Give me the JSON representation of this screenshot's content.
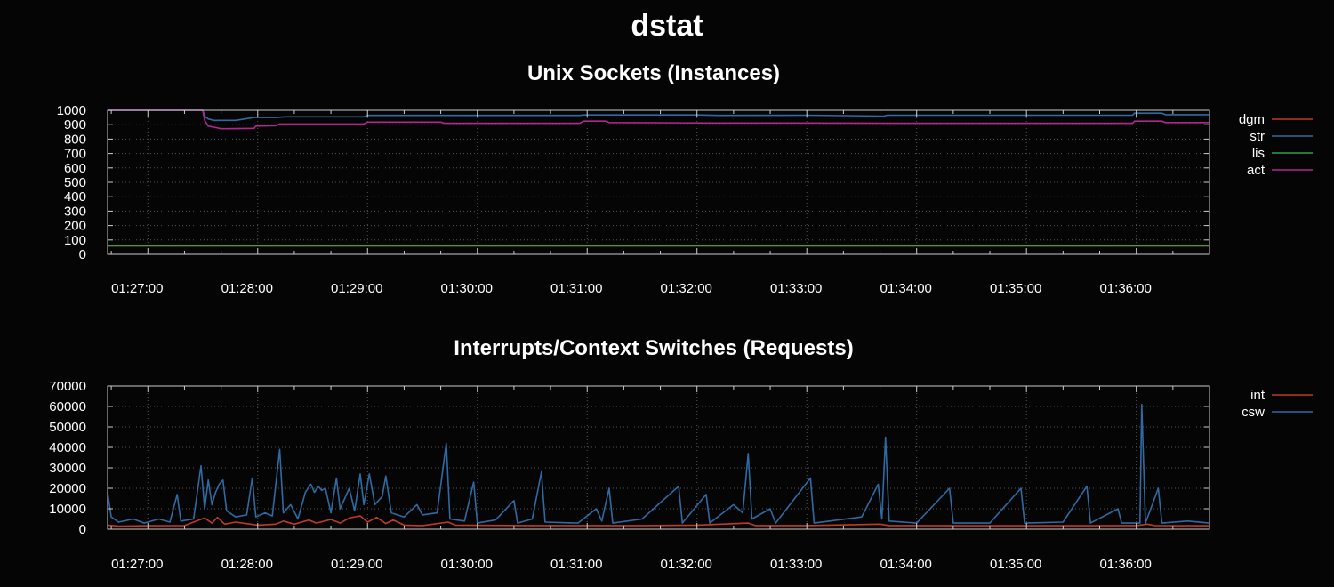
{
  "page": {
    "title": "dstat",
    "background": "#050505"
  },
  "chart_data": [
    {
      "type": "line",
      "title": "Unix Sockets (Instances)",
      "xlabel": "",
      "ylabel": "",
      "x_range": [
        "01:26:38",
        "01:36:40"
      ],
      "ylim": [
        0,
        1000
      ],
      "yticks": [
        "0",
        "100",
        "200",
        "300",
        "400",
        "500",
        "600",
        "700",
        "800",
        "900",
        "1000"
      ],
      "xticks": [
        "01:27:00",
        "01:28:00",
        "01:29:00",
        "01:30:00",
        "01:31:00",
        "01:32:00",
        "01:33:00",
        "01:34:00",
        "01:35:00",
        "01:36:00"
      ],
      "grid": true,
      "legend_position": "right",
      "series": [
        {
          "name": "dgm",
          "color": "#c0392b",
          "points": [
            [
              "01:26:38",
              58
            ],
            [
              "01:36:40",
              58
            ]
          ]
        },
        {
          "name": "str",
          "color": "#2e6aa3",
          "points": [
            [
              "01:26:38",
              1000
            ],
            [
              "01:27:30",
              1000
            ],
            [
              "01:27:31",
              960
            ],
            [
              "01:27:33",
              940
            ],
            [
              "01:27:36",
              930
            ],
            [
              "01:27:48",
              930
            ],
            [
              "01:27:58",
              950
            ],
            [
              "01:28:10",
              950
            ],
            [
              "01:28:15",
              955
            ],
            [
              "01:28:58",
              955
            ],
            [
              "01:29:00",
              965
            ],
            [
              "01:30:56",
              965
            ],
            [
              "01:30:58",
              968
            ],
            [
              "01:32:00",
              968
            ],
            [
              "01:32:12",
              965
            ],
            [
              "01:33:00",
              966
            ],
            [
              "01:33:42",
              960
            ],
            [
              "01:33:44",
              966
            ],
            [
              "01:35:58",
              966
            ],
            [
              "01:35:59",
              980
            ],
            [
              "01:36:14",
              980
            ],
            [
              "01:36:16",
              970
            ],
            [
              "01:36:40",
              970
            ]
          ]
        },
        {
          "name": "lis",
          "color": "#2e9e4f",
          "points": [
            [
              "01:26:38",
              60
            ],
            [
              "01:36:40",
              60
            ]
          ]
        },
        {
          "name": "act",
          "color": "#b0288e",
          "points": [
            [
              "01:26:38",
              1000
            ],
            [
              "01:27:30",
              1000
            ],
            [
              "01:27:31",
              930
            ],
            [
              "01:27:33",
              890
            ],
            [
              "01:27:37",
              880
            ],
            [
              "01:27:40",
              872
            ],
            [
              "01:27:58",
              875
            ],
            [
              "01:27:59",
              890
            ],
            [
              "01:28:10",
              893
            ],
            [
              "01:28:12",
              905
            ],
            [
              "01:28:58",
              905
            ],
            [
              "01:29:00",
              918
            ],
            [
              "01:29:40",
              918
            ],
            [
              "01:29:42",
              910
            ],
            [
              "01:30:56",
              910
            ],
            [
              "01:30:58",
              925
            ],
            [
              "01:31:10",
              925
            ],
            [
              "01:31:12",
              915
            ],
            [
              "01:32:10",
              912
            ],
            [
              "01:33:00",
              912
            ],
            [
              "01:34:00",
              910
            ],
            [
              "01:35:00",
              910
            ],
            [
              "01:35:58",
              910
            ],
            [
              "01:35:59",
              925
            ],
            [
              "01:36:14",
              925
            ],
            [
              "01:36:16",
              915
            ],
            [
              "01:36:40",
              915
            ]
          ]
        }
      ]
    },
    {
      "type": "line",
      "title": "Interrupts/Context Switches (Requests)",
      "xlabel": "",
      "ylabel": "",
      "x_range": [
        "01:26:38",
        "01:36:40"
      ],
      "ylim": [
        0,
        70000
      ],
      "yticks": [
        "0",
        "10000",
        "20000",
        "30000",
        "40000",
        "50000",
        "60000",
        "70000"
      ],
      "xticks": [
        "01:27:00",
        "01:28:00",
        "01:29:00",
        "01:30:00",
        "01:31:00",
        "01:32:00",
        "01:33:00",
        "01:34:00",
        "01:35:00",
        "01:36:00"
      ],
      "grid": true,
      "legend_position": "right",
      "series": [
        {
          "name": "int",
          "color": "#c0392b",
          "points": [
            [
              "01:26:38",
              2000
            ],
            [
              "01:26:44",
              1500
            ],
            [
              "01:27:00",
              1700
            ],
            [
              "01:27:20",
              1800
            ],
            [
              "01:27:28",
              4500
            ],
            [
              "01:27:31",
              5500
            ],
            [
              "01:27:35",
              3000
            ],
            [
              "01:27:38",
              5800
            ],
            [
              "01:27:42",
              2500
            ],
            [
              "01:27:48",
              3500
            ],
            [
              "01:28:00",
              2000
            ],
            [
              "01:28:10",
              2500
            ],
            [
              "01:28:14",
              4000
            ],
            [
              "01:28:20",
              2500
            ],
            [
              "01:28:28",
              4500
            ],
            [
              "01:28:32",
              3000
            ],
            [
              "01:28:40",
              4800
            ],
            [
              "01:28:45",
              3000
            ],
            [
              "01:28:50",
              5500
            ],
            [
              "01:28:56",
              6500
            ],
            [
              "01:29:00",
              3500
            ],
            [
              "01:29:05",
              5800
            ],
            [
              "01:29:10",
              2800
            ],
            [
              "01:29:14",
              4500
            ],
            [
              "01:29:20",
              2000
            ],
            [
              "01:29:30",
              1800
            ],
            [
              "01:29:44",
              3500
            ],
            [
              "01:29:48",
              2000
            ],
            [
              "01:30:30",
              1800
            ],
            [
              "01:31:00",
              1800
            ],
            [
              "01:31:30",
              1800
            ],
            [
              "01:32:00",
              2000
            ],
            [
              "01:32:28",
              3000
            ],
            [
              "01:32:32",
              1800
            ],
            [
              "01:33:00",
              1800
            ],
            [
              "01:33:40",
              2500
            ],
            [
              "01:33:45",
              1800
            ],
            [
              "01:34:30",
              1700
            ],
            [
              "01:35:30",
              1700
            ],
            [
              "01:36:00",
              1800
            ],
            [
              "01:36:06",
              2500
            ],
            [
              "01:36:10",
              1800
            ],
            [
              "01:36:40",
              1700
            ]
          ]
        },
        {
          "name": "csw",
          "color": "#2e6aa3",
          "points": [
            [
              "01:26:38",
              18000
            ],
            [
              "01:26:40",
              6000
            ],
            [
              "01:26:44",
              3500
            ],
            [
              "01:26:52",
              5000
            ],
            [
              "01:26:58",
              3000
            ],
            [
              "01:27:06",
              5000
            ],
            [
              "01:27:12",
              3500
            ],
            [
              "01:27:16",
              17000
            ],
            [
              "01:27:18",
              4000
            ],
            [
              "01:27:25",
              5000
            ],
            [
              "01:27:29",
              31000
            ],
            [
              "01:27:31",
              10000
            ],
            [
              "01:27:33",
              24000
            ],
            [
              "01:27:35",
              12000
            ],
            [
              "01:27:37",
              18000
            ],
            [
              "01:27:39",
              22000
            ],
            [
              "01:27:41",
              24000
            ],
            [
              "01:27:43",
              9000
            ],
            [
              "01:27:48",
              6000
            ],
            [
              "01:27:54",
              7000
            ],
            [
              "01:27:57",
              25000
            ],
            [
              "01:27:59",
              6000
            ],
            [
              "01:28:04",
              8000
            ],
            [
              "01:28:08",
              6500
            ],
            [
              "01:28:12",
              39000
            ],
            [
              "01:28:14",
              8000
            ],
            [
              "01:28:18",
              12000
            ],
            [
              "01:28:22",
              5000
            ],
            [
              "01:28:26",
              18000
            ],
            [
              "01:28:29",
              22000
            ],
            [
              "01:28:31",
              18000
            ],
            [
              "01:28:33",
              21000
            ],
            [
              "01:28:35",
              19000
            ],
            [
              "01:28:37",
              20000
            ],
            [
              "01:28:40",
              8000
            ],
            [
              "01:28:43",
              25000
            ],
            [
              "01:28:45",
              10000
            ],
            [
              "01:28:50",
              20000
            ],
            [
              "01:28:53",
              9000
            ],
            [
              "01:28:56",
              27000
            ],
            [
              "01:28:58",
              12000
            ],
            [
              "01:29:01",
              27000
            ],
            [
              "01:29:04",
              12000
            ],
            [
              "01:29:08",
              16000
            ],
            [
              "01:29:10",
              26000
            ],
            [
              "01:29:13",
              8000
            ],
            [
              "01:29:20",
              6000
            ],
            [
              "01:29:27",
              12000
            ],
            [
              "01:29:30",
              7000
            ],
            [
              "01:29:38",
              8000
            ],
            [
              "01:29:43",
              42000
            ],
            [
              "01:29:45",
              5000
            ],
            [
              "01:29:53",
              4000
            ],
            [
              "01:29:58",
              23000
            ],
            [
              "01:30:00",
              3000
            ],
            [
              "01:30:10",
              4500
            ],
            [
              "01:30:20",
              14000
            ],
            [
              "01:30:22",
              3000
            ],
            [
              "01:30:30",
              5000
            ],
            [
              "01:30:35",
              28000
            ],
            [
              "01:30:37",
              3500
            ],
            [
              "01:30:55",
              3000
            ],
            [
              "01:31:05",
              10000
            ],
            [
              "01:31:08",
              4000
            ],
            [
              "01:31:12",
              20000
            ],
            [
              "01:31:14",
              3000
            ],
            [
              "01:31:30",
              5000
            ],
            [
              "01:31:50",
              21000
            ],
            [
              "01:31:52",
              3000
            ],
            [
              "01:32:05",
              17000
            ],
            [
              "01:32:07",
              3000
            ],
            [
              "01:32:20",
              12000
            ],
            [
              "01:32:25",
              8000
            ],
            [
              "01:32:28",
              37000
            ],
            [
              "01:32:30",
              5000
            ],
            [
              "01:32:40",
              10000
            ],
            [
              "01:32:43",
              3000
            ],
            [
              "01:33:02",
              25000
            ],
            [
              "01:33:04",
              3000
            ],
            [
              "01:33:30",
              6000
            ],
            [
              "01:33:39",
              22000
            ],
            [
              "01:33:41",
              5000
            ],
            [
              "01:33:43",
              45000
            ],
            [
              "01:33:45",
              4000
            ],
            [
              "01:34:00",
              3000
            ],
            [
              "01:34:18",
              20000
            ],
            [
              "01:34:20",
              3000
            ],
            [
              "01:34:40",
              3000
            ],
            [
              "01:34:57",
              20000
            ],
            [
              "01:34:59",
              3000
            ],
            [
              "01:35:20",
              3500
            ],
            [
              "01:35:33",
              21000
            ],
            [
              "01:35:35",
              3000
            ],
            [
              "01:35:50",
              10000
            ],
            [
              "01:35:52",
              3000
            ],
            [
              "01:36:02",
              3000
            ],
            [
              "01:36:03",
              61000
            ],
            [
              "01:36:05",
              3000
            ],
            [
              "01:36:12",
              20000
            ],
            [
              "01:36:14",
              3000
            ],
            [
              "01:36:28",
              4000
            ],
            [
              "01:36:40",
              3000
            ]
          ]
        }
      ]
    }
  ]
}
